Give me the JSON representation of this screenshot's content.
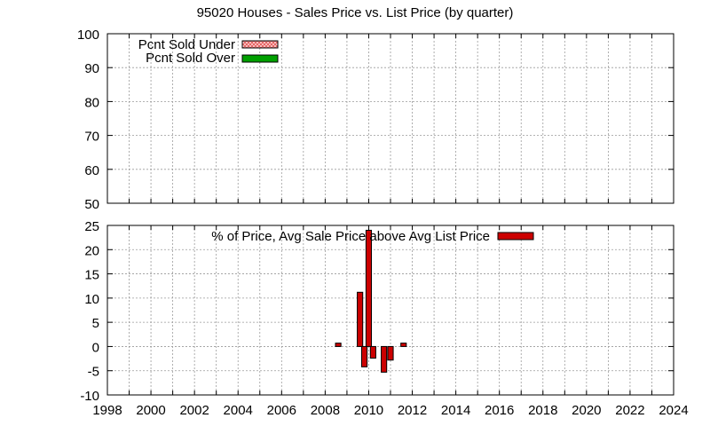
{
  "chart_data": [
    {
      "type": "bar",
      "title": "95020 Houses - Sales Price vs. List Price (by quarter)",
      "xlim": [
        1998,
        2024
      ],
      "ylim": [
        50,
        100
      ],
      "ytick_labels": [
        "50",
        "60",
        "70",
        "80",
        "90",
        "100"
      ],
      "grid": true,
      "legend_position": "top-left",
      "series": [
        {
          "name": "Pcnt Sold Under",
          "color": "#ffc0c0",
          "pattern": "crosshatch",
          "points": []
        },
        {
          "name": "Pcnt Sold Over",
          "color": "#00a000",
          "points": []
        }
      ]
    },
    {
      "type": "bar",
      "xlim": [
        1998,
        2024
      ],
      "ylim": [
        -10,
        25
      ],
      "xtick_labels": [
        "1998",
        "2000",
        "2002",
        "2004",
        "2006",
        "2008",
        "2010",
        "2012",
        "2014",
        "2016",
        "2018",
        "2020",
        "2022",
        "2024"
      ],
      "ytick_labels": [
        "-10",
        "-5",
        "0",
        "5",
        "10",
        "15",
        "20",
        "25"
      ],
      "grid": true,
      "legend_position": "top-center",
      "series": [
        {
          "name": "% of Price, Avg Sale Price above Avg List Price",
          "color": "#cc0000",
          "points": [
            {
              "x": 2008.6,
              "y": 0.7
            },
            {
              "x": 2009.6,
              "y": 11.2
            },
            {
              "x": 2009.8,
              "y": -4.2
            },
            {
              "x": 2010.0,
              "y": 24.0
            },
            {
              "x": 2010.2,
              "y": -2.4
            },
            {
              "x": 2010.7,
              "y": -5.3
            },
            {
              "x": 2011.0,
              "y": -2.8
            },
            {
              "x": 2011.6,
              "y": 0.7
            }
          ]
        }
      ]
    }
  ]
}
